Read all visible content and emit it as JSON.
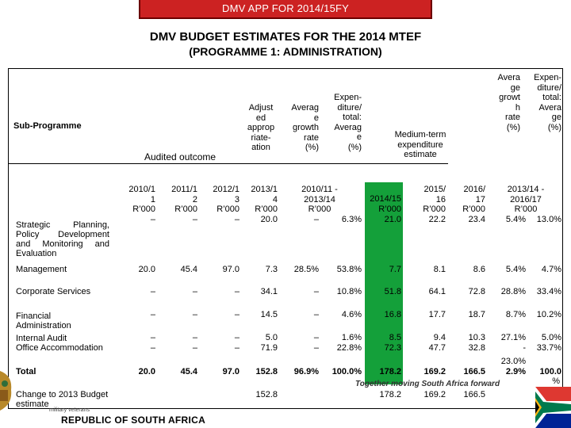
{
  "banner": "DMV APP FOR 2014/15FY",
  "title_line1": "DMV BUDGET ESTIMATES FOR THE 2014 MTEF",
  "title_line2": "(PROGRAMME 1: ADMINISTRATION)",
  "headers": {
    "sub_programme": "Sub-Programme",
    "audited_outcome": "Audited outcome",
    "adjusted_appropriation": [
      "Adjust",
      "ed",
      "approp",
      "riate-",
      "ation"
    ],
    "average_growth": [
      "Averag",
      "e",
      "growth",
      "rate",
      "(%)"
    ],
    "expenditure_total_avg": [
      "Expen-",
      "diture/",
      "total:",
      "Averag",
      "e",
      "(%)"
    ],
    "medium_term": [
      "Medium-term",
      "expenditure",
      "estimate"
    ],
    "avg_growth_rate2": [
      "Avera",
      "ge",
      "growt",
      "h",
      "rate",
      "(%)"
    ],
    "expenditure_total_avg2": [
      "Expen-",
      "diture/",
      "total:",
      "Avera",
      "ge",
      "(%)"
    ]
  },
  "years": {
    "y2010": [
      "2010/1",
      "1",
      "R’000"
    ],
    "y2011": [
      "2011/1",
      "2",
      "R’000"
    ],
    "y2012": [
      "2012/1",
      "3",
      "R’000"
    ],
    "y2013": [
      "2013/1",
      "4",
      "R’000"
    ],
    "range1": [
      "2010/11 -",
      "2013/14",
      "R’000"
    ],
    "y2014": [
      "2014/15",
      "R’000"
    ],
    "y2015": [
      "2015/",
      "16",
      "R’000"
    ],
    "y2016": [
      "2016/",
      "17",
      "R’000"
    ],
    "range2": [
      "2013/14 -",
      "2016/17",
      "R’000"
    ]
  },
  "rows": [
    {
      "name": "Strategic Planning, Policy Development and Monitoring and Evaluation",
      "values": [
        "–",
        "–",
        "–",
        "20.0",
        "–",
        "6.3%",
        "21.0",
        "22.2",
        "23.4",
        "5.4%",
        "13.0%"
      ]
    },
    {
      "name": "Management",
      "values": [
        "20.0",
        "45.4",
        "97.0",
        "7.3",
        "28.5%",
        "53.8%",
        "7.7",
        "8.1",
        "8.6",
        "5.4%",
        "4.7%"
      ]
    },
    {
      "name": "Corporate Services",
      "values": [
        "–",
        "–",
        "–",
        "34.1",
        "–",
        "10.8%",
        "51.8",
        "64.1",
        "72.8",
        "28.8%",
        "33.4%"
      ]
    },
    {
      "name": "Financial Administration",
      "values": [
        "–",
        "–",
        "–",
        "14.5",
        "–",
        "4.6%",
        "16.8",
        "17.7",
        "18.7",
        "8.7%",
        "10.2%"
      ]
    },
    {
      "name": "Internal Audit",
      "values": [
        "–",
        "–",
        "–",
        "5.0",
        "–",
        "1.6%",
        "8.5",
        "9.4",
        "10.3",
        "27.1%",
        "5.0%"
      ]
    },
    {
      "name": "Office Accommodation",
      "values": [
        "–",
        "–",
        "–",
        "71.9",
        "–",
        "22.8%",
        "72.3",
        "47.7",
        "32.8",
        "-",
        "33.7%"
      ]
    },
    {
      "name": "Total",
      "values": [
        "20.0",
        "45.4",
        "97.0",
        "152.8",
        "96.9%",
        "100.0%",
        "178.2",
        "169.2",
        "166.5",
        "2.9%",
        "100.0"
      ]
    },
    {
      "name": "Change to 2013 Budget estimate",
      "values": [
        "",
        "",
        "",
        "152.8",
        "",
        "",
        "178.2",
        "169.2",
        "166.5",
        "",
        ""
      ]
    }
  ],
  "extra": {
    "office_avg_extra": "23.0%",
    "total_pct_extra": "%"
  },
  "footer": {
    "tagline": "Together moving South Africa forward",
    "country": "REPUBLIC OF SOUTH AFRICA",
    "dept": "military veterans"
  },
  "colors": {
    "banner": "#cc2222",
    "highlight": "#14a03a"
  }
}
